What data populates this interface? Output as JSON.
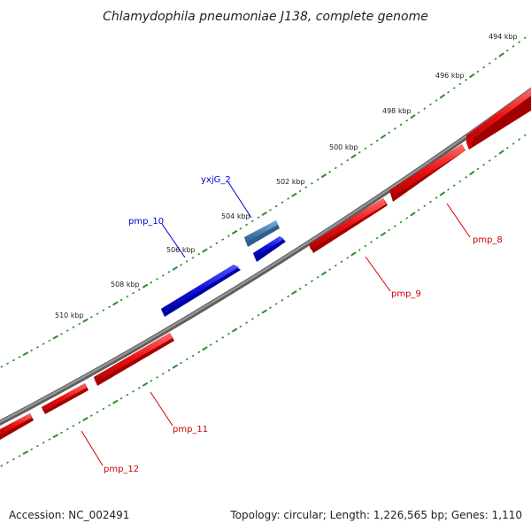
{
  "title": "Chlamydophila pneumoniae J138, complete genome",
  "footer": {
    "accession": "Accession: NC_002491",
    "summary": "Topology: circular; Length: 1,226,565 bp; Genes: 1,110"
  },
  "scale": {
    "ticks": [
      "494 kbp",
      "496 kbp",
      "498 kbp",
      "500 kbp",
      "502 kbp",
      "504 kbp",
      "506 kbp",
      "508 kbp",
      "510 kbp"
    ]
  },
  "genes": [
    {
      "name": "pmp_8",
      "strand": "reverse"
    },
    {
      "name": "pmp_9",
      "strand": "reverse"
    },
    {
      "name": "yxjG_2",
      "strand": "forward"
    },
    {
      "name": "pmp_10",
      "strand": "forward"
    },
    {
      "name": "pmp_11",
      "strand": "reverse"
    },
    {
      "name": "pmp_12",
      "strand": "reverse"
    }
  ],
  "colors": {
    "backbone": "#7a7a7a",
    "tick_dots": "#2e8b2e",
    "reverse_gene": "#ee1111",
    "forward_gene": "#1111dd",
    "yxjG_gene": "#4682b4",
    "reverse_label": "#cc0000",
    "forward_label": "#0000cc"
  }
}
